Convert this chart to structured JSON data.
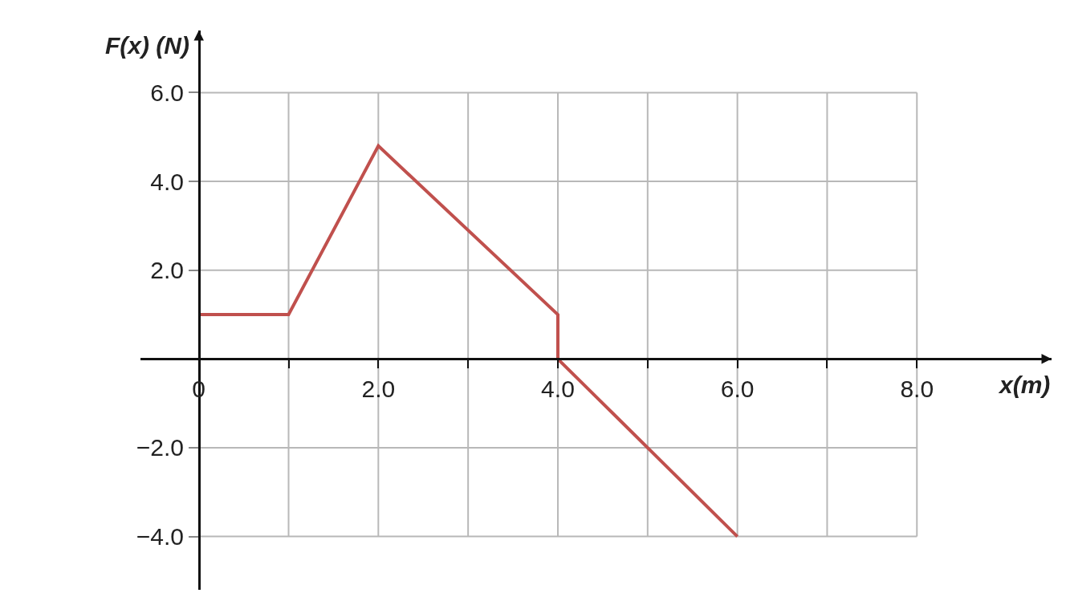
{
  "chart_data": {
    "type": "line",
    "xlabel": "x(m)",
    "ylabel": "F(x) (N)",
    "x": [
      0,
      1,
      2,
      4,
      4,
      6
    ],
    "series": [
      {
        "color": "#c0504d",
        "values": [
          1.0,
          1.0,
          4.8,
          1.0,
          0,
          -4.0
        ]
      }
    ],
    "xlim": [
      -0.65,
      9.5
    ],
    "ylim": [
      -5.2,
      7.4
    ],
    "xticks": [
      {
        "value": 0,
        "label": "0"
      },
      {
        "value": 1,
        "label": null
      },
      {
        "value": 2,
        "label": "2.0"
      },
      {
        "value": 3,
        "label": null
      },
      {
        "value": 4,
        "label": "4.0"
      },
      {
        "value": 5,
        "label": null
      },
      {
        "value": 6,
        "label": "6.0"
      },
      {
        "value": 7,
        "label": null
      },
      {
        "value": 8,
        "label": "8.0"
      }
    ],
    "yticks": [
      {
        "value": -4,
        "label": "−4.0"
      },
      {
        "value": -2,
        "label": "−2.0"
      },
      {
        "value": 2,
        "label": "2.0"
      },
      {
        "value": 4,
        "label": "4.0"
      },
      {
        "value": 6,
        "label": "6.0"
      }
    ],
    "grid": true,
    "marker": "none",
    "line_style": "solid"
  }
}
